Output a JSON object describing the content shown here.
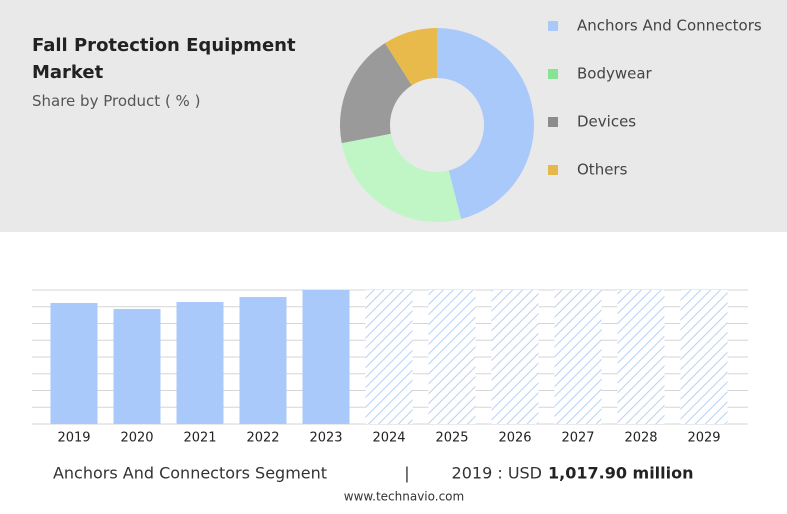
{
  "chart_data": [
    {
      "type": "donut",
      "title": "Fall Protection Equipment Market",
      "subtitle": "Share by Product ( % )",
      "categories": [
        "Anchors And Connectors",
        "Bodywear",
        "Devices",
        "Others"
      ],
      "values": [
        46,
        26,
        19,
        9
      ],
      "colors": [
        "#a9c9fa",
        "#c0f5c6",
        "#9a9a9a",
        "#e8b94b"
      ],
      "legend_colors": [
        "#a9c9fa",
        "#86e494",
        "#8c8c8c",
        "#e6b84a"
      ]
    },
    {
      "type": "bar",
      "categories": [
        "2019",
        "2020",
        "2021",
        "2022",
        "2023",
        "2024",
        "2025",
        "2026",
        "2027",
        "2028",
        "2029"
      ],
      "values": [
        1017.9,
        967.5,
        1026,
        1068,
        1127,
        null,
        null,
        null,
        null,
        null,
        null
      ],
      "color": "#a9c9fa",
      "ylim": [
        0,
        1127
      ],
      "grid": true,
      "segment": "Anchors And Connectors Segment",
      "separator": "|",
      "highlight_prefix": "2019 : USD",
      "highlight_value": "1,017.90 million",
      "source": "www.technavio.com"
    }
  ]
}
